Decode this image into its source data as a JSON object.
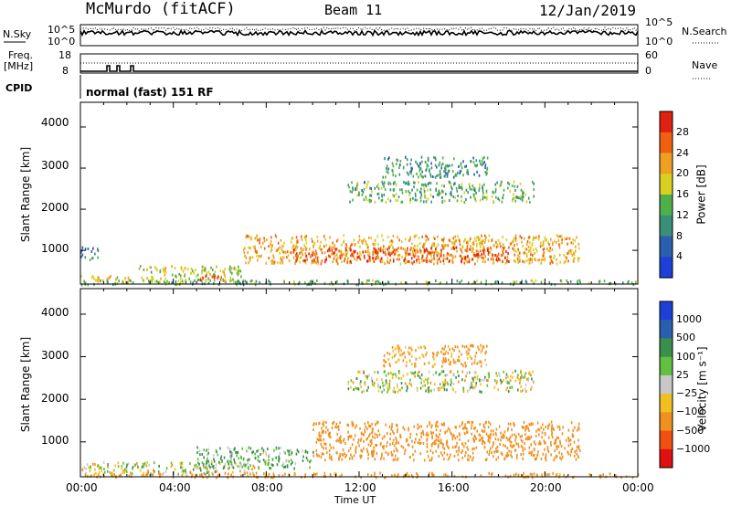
{
  "header": {
    "station": "McMurdo (fitACF)",
    "beam": "Beam 11",
    "date": "12/Jan/2019"
  },
  "strip_panels": {
    "nsky_label": "N.Sky",
    "nsearch_label": "N.Search",
    "noise_ticks_left": [
      "10^5",
      "10^0"
    ],
    "noise_ticks_right": [
      "10^5",
      "10^0"
    ],
    "freq_label_line1": "Freq.",
    "freq_label_line2": "[MHz]",
    "freq_ticks": [
      "18",
      "8"
    ],
    "nave_label": "Nave",
    "nave_ticks": [
      "60",
      "0"
    ],
    "cpid_label": "CPID",
    "cpid_text": "normal (fast) 151 RF"
  },
  "chart_data": [
    {
      "type": "heatmap",
      "panel": "power",
      "ylabel": "Slant Range [km]",
      "yticks": [
        "4000",
        "3000",
        "2000",
        "1000"
      ],
      "ylim": [
        180,
        4600
      ],
      "xlim_hours": [
        0,
        24
      ],
      "colorbar_label": "Power [dB]",
      "colorbar_ticks": [
        "28",
        "24",
        "20",
        "16",
        "12",
        "8",
        "4"
      ],
      "colorbar_range": [
        0,
        30
      ],
      "colors": [
        "#1f3fd9",
        "#2a5fb0",
        "#3a8f7a",
        "#4fb04a",
        "#d8d020",
        "#f0a020",
        "#f06010",
        "#e02010"
      ],
      "scatter_bands": [
        {
          "t0": 0,
          "t1": 2.2,
          "r0": 240,
          "r1": 420,
          "power": 18
        },
        {
          "t0": 0,
          "t1": 0.8,
          "r0": 800,
          "r1": 1100,
          "power": 8
        },
        {
          "t0": 2.5,
          "t1": 7.0,
          "r0": 250,
          "r1": 650,
          "power": 16
        },
        {
          "t0": 5.0,
          "t1": 6.2,
          "r0": 280,
          "r1": 420,
          "power": 28
        },
        {
          "t0": 7.0,
          "t1": 21.5,
          "r0": 700,
          "r1": 1400,
          "power": 20
        },
        {
          "t0": 9.0,
          "t1": 18.5,
          "r0": 750,
          "r1": 1100,
          "power": 26
        },
        {
          "t0": 11.5,
          "t1": 19.5,
          "r0": 2200,
          "r1": 2700,
          "power": 12
        },
        {
          "t0": 13.0,
          "t1": 17.5,
          "r0": 2800,
          "r1": 3300,
          "power": 10
        },
        {
          "t0": 0,
          "t1": 24,
          "r0": 190,
          "r1": 300,
          "power": 12
        }
      ]
    },
    {
      "type": "heatmap",
      "panel": "velocity",
      "ylabel": "Slant Range [km]",
      "yticks": [
        "4000",
        "3000",
        "2000",
        "1000"
      ],
      "ylim": [
        180,
        4600
      ],
      "xlim_hours": [
        0,
        24
      ],
      "xticks": [
        "00:00",
        "04:00",
        "08:00",
        "12:00",
        "16:00",
        "20:00",
        "00:00"
      ],
      "xlabel": "Time UT",
      "colorbar_label": "Velocity [m s⁻¹]",
      "colorbar_ticks": [
        "1000",
        "500",
        "100",
        "25",
        "−25",
        "−100",
        "−500",
        "−1000"
      ],
      "colors": [
        "#1f3fd9",
        "#2a5fb0",
        "#3a8f4a",
        "#60c040",
        "#c8c8c8",
        "#f0c020",
        "#f09020",
        "#f05010",
        "#e01010"
      ],
      "scatter_bands": [
        {
          "t0": 0,
          "t1": 7.5,
          "r0": 250,
          "r1": 550,
          "velocity": 0
        },
        {
          "t0": 5.0,
          "t1": 10.0,
          "r0": 400,
          "r1": 900,
          "velocity": 120
        },
        {
          "t0": 10.0,
          "t1": 21.5,
          "r0": 600,
          "r1": 1500,
          "velocity": -300
        },
        {
          "t0": 11.5,
          "t1": 19.5,
          "r0": 2200,
          "r1": 2700,
          "velocity": 0
        },
        {
          "t0": 13.0,
          "t1": 17.5,
          "r0": 2800,
          "r1": 3300,
          "velocity": -150
        },
        {
          "t0": 0,
          "t1": 24,
          "r0": 190,
          "r1": 300,
          "velocity": -200
        }
      ]
    }
  ]
}
